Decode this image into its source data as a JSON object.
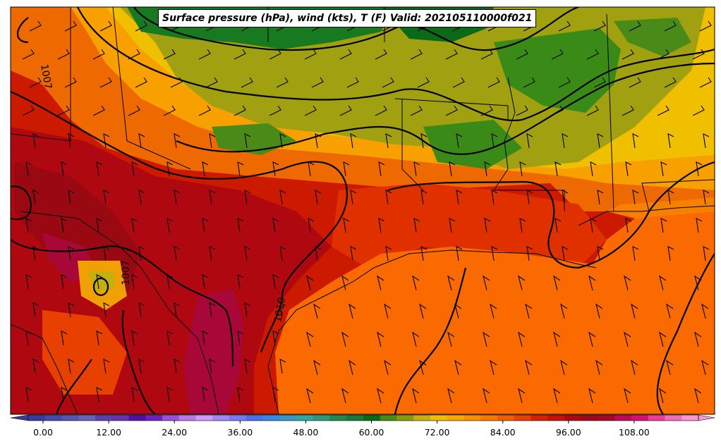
{
  "title": "Surface pressure (hPa), wind (kts), T (F) Valid: 202105110000f021",
  "colorbar": {
    "ticks": [
      "0.00",
      "12.00",
      "24.00",
      "36.00",
      "48.00",
      "60.00",
      "72.00",
      "84.00",
      "96.00",
      "108.00"
    ],
    "colors": [
      "#3a3a9a",
      "#4848a8",
      "#5656b0",
      "#6464b8",
      "#5a40a8",
      "#6a30b0",
      "#5010a0",
      "#7020c0",
      "#9a50d8",
      "#b878e8",
      "#d098f8",
      "#a088f0",
      "#7878f0",
      "#4870e8",
      "#3888e0",
      "#3898c8",
      "#30a8a0",
      "#2a9a78",
      "#208a50",
      "#187a38",
      "#0a6a18",
      "#4a8a18",
      "#8a9a10",
      "#c8b010",
      "#f0c000",
      "#f8a800",
      "#f89000",
      "#f87800",
      "#f06000",
      "#e84000",
      "#d82000",
      "#c81008",
      "#b00810",
      "#a00818",
      "#a80828",
      "#c00858",
      "#d81070",
      "#e84098",
      "#f070b8",
      "#f898d0"
    ]
  },
  "isobar_labels": [
    "1007",
    "1007",
    "1010"
  ]
}
